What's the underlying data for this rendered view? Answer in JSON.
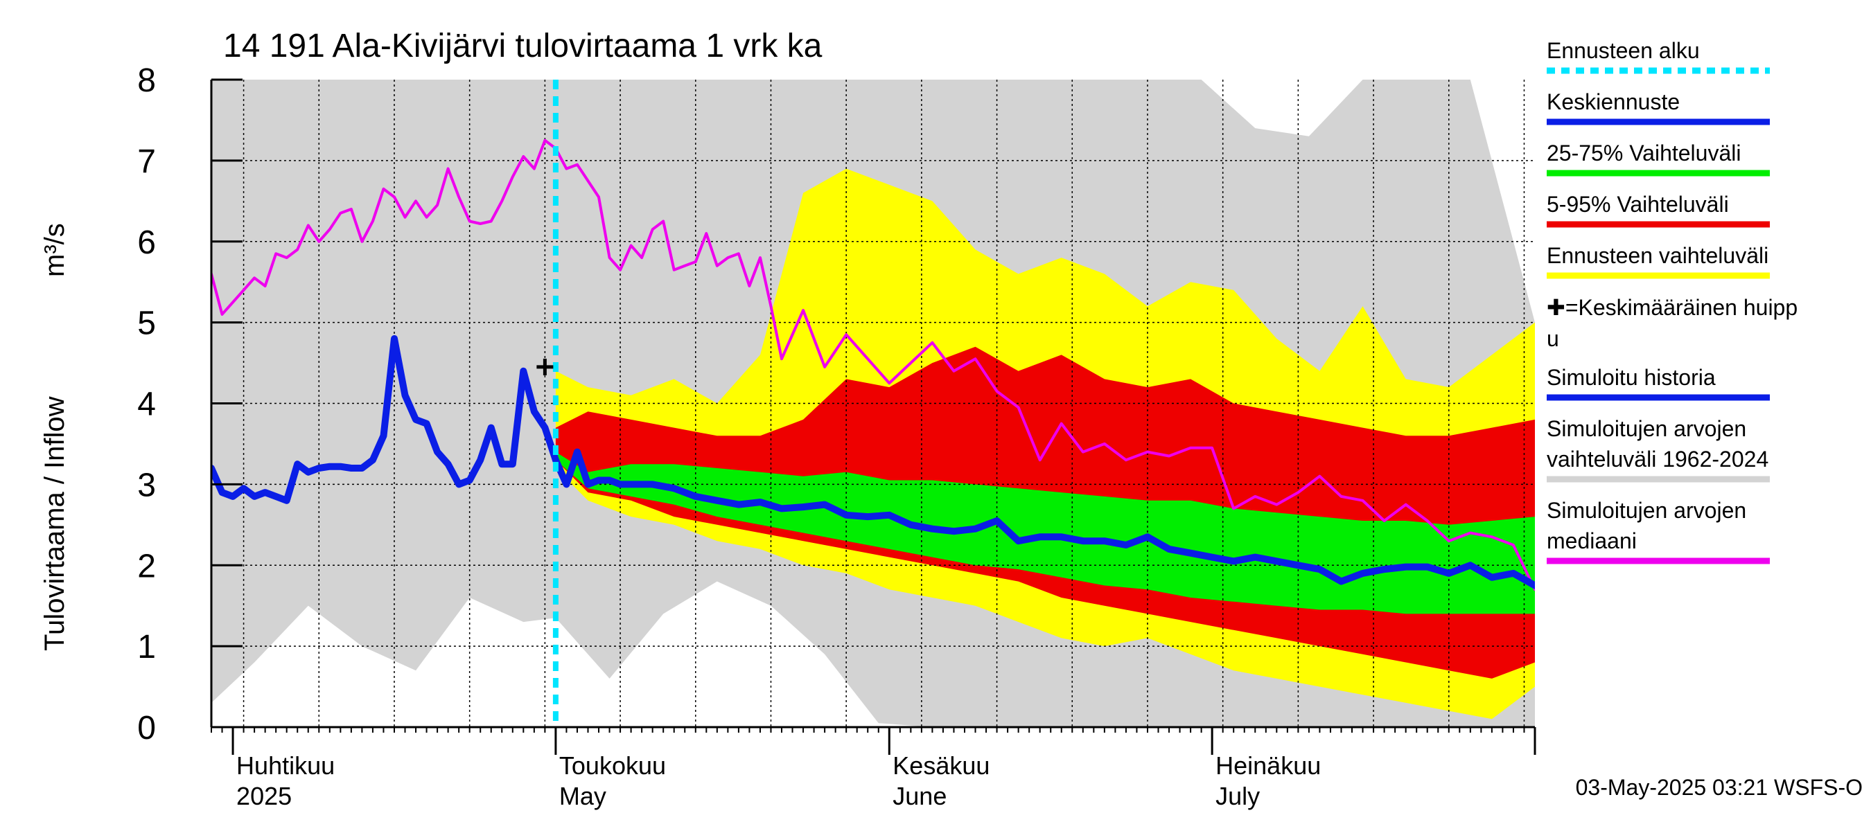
{
  "chart_data": {
    "type": "area",
    "title": "14 191 Ala-Kivijärvi tulovirtaama 1 vrk ka",
    "ylabel": "Tulovirtaama / Inflow",
    "yunit": "m³/s",
    "ylim": [
      0,
      8
    ],
    "yticks": [
      0,
      1,
      2,
      3,
      4,
      5,
      6,
      7,
      8
    ],
    "xlim": [
      "2025-03-30",
      "2025-07-31"
    ],
    "grid": true,
    "legend_position": "right",
    "month_labels": [
      {
        "date": "2025-04-01",
        "fi": "Huhtikuu",
        "en": "2025"
      },
      {
        "date": "2025-05-01",
        "fi": "Toukokuu",
        "en": "May"
      },
      {
        "date": "2025-06-01",
        "fi": "Kesäkuu",
        "en": "June"
      },
      {
        "date": "2025-07-01",
        "fi": "Heinäkuu",
        "en": "July"
      }
    ],
    "forecast_start": "2025-05-01",
    "mean_peak": {
      "date": "2025-04-30",
      "value": 4.45
    },
    "footer": "03-May-2025 03:21 WSFS-O",
    "legend": [
      {
        "label": "Ennusteen alku",
        "color": "#00e5ff",
        "style": "dashed"
      },
      {
        "label": "Keskiennuste",
        "color": "#0a1ee6",
        "style": "line"
      },
      {
        "label": "25-75% Vaihteluväli",
        "color": "#00ee00",
        "style": "line"
      },
      {
        "label": "5-95% Vaihteluväli",
        "color": "#ee0000",
        "style": "line"
      },
      {
        "label": "Ennusteen vaihteluväli",
        "color": "#ffff00",
        "style": "line"
      },
      {
        "label": "✚=Keskimääräinen huipp",
        "label2": "u",
        "color": "#000000",
        "style": "text"
      },
      {
        "label": "Simuloitu historia",
        "color": "#0a1ee6",
        "style": "line"
      },
      {
        "label": "Simuloitujen arvojen",
        "label2": "vaihteluväli 1962-2024",
        "color": "#d3d3d3",
        "style": "line"
      },
      {
        "label": "Simuloitujen arvojen",
        "label2": "mediaani",
        "color": "#ee00ee",
        "style": "line"
      }
    ],
    "colors": {
      "history_band": "#d3d3d3",
      "ensemble_band": "#ffff00",
      "p5_95_band": "#ee0000",
      "p25_75_band": "#00ee00",
      "median_line": "#ee00ee",
      "mean_forecast": "#0a1ee6",
      "forecast_start": "#00e5ff"
    },
    "series": [
      {
        "name": "Simuloitu historia",
        "x": [
          "2025-03-30",
          "2025-03-31",
          "2025-04-01",
          "2025-04-02",
          "2025-04-03",
          "2025-04-04",
          "2025-04-05",
          "2025-04-06",
          "2025-04-07",
          "2025-04-08",
          "2025-04-09",
          "2025-04-10",
          "2025-04-11",
          "2025-04-12",
          "2025-04-13",
          "2025-04-14",
          "2025-04-15",
          "2025-04-16",
          "2025-04-17",
          "2025-04-18",
          "2025-04-19",
          "2025-04-20",
          "2025-04-21",
          "2025-04-22",
          "2025-04-23",
          "2025-04-24",
          "2025-04-25",
          "2025-04-26",
          "2025-04-27",
          "2025-04-28",
          "2025-04-29",
          "2025-04-30",
          "2025-05-01"
        ],
        "values": [
          3.2,
          2.9,
          2.85,
          2.95,
          2.85,
          2.9,
          2.85,
          2.8,
          3.25,
          3.15,
          3.2,
          3.22,
          3.22,
          3.2,
          3.2,
          3.3,
          3.6,
          4.8,
          4.1,
          3.8,
          3.75,
          3.4,
          3.25,
          3.0,
          3.05,
          3.3,
          3.7,
          3.25,
          3.25,
          4.4,
          3.9,
          3.7,
          3.3
        ]
      },
      {
        "name": "Keskiennuste",
        "x": [
          "2025-05-01",
          "2025-05-02",
          "2025-05-03",
          "2025-05-04",
          "2025-05-05",
          "2025-05-06",
          "2025-05-07",
          "2025-05-08",
          "2025-05-10",
          "2025-05-12",
          "2025-05-14",
          "2025-05-16",
          "2025-05-18",
          "2025-05-20",
          "2025-05-22",
          "2025-05-24",
          "2025-05-26",
          "2025-05-28",
          "2025-05-30",
          "2025-06-01",
          "2025-06-03",
          "2025-06-05",
          "2025-06-07",
          "2025-06-09",
          "2025-06-11",
          "2025-06-13",
          "2025-06-15",
          "2025-06-17",
          "2025-06-19",
          "2025-06-21",
          "2025-06-23",
          "2025-06-25",
          "2025-06-27",
          "2025-06-29",
          "2025-07-01",
          "2025-07-03",
          "2025-07-05",
          "2025-07-07",
          "2025-07-09",
          "2025-07-11",
          "2025-07-13",
          "2025-07-15",
          "2025-07-17",
          "2025-07-19",
          "2025-07-21",
          "2025-07-23",
          "2025-07-25",
          "2025-07-27",
          "2025-07-29",
          "2025-07-31"
        ],
        "values": [
          3.3,
          3.0,
          3.4,
          3.0,
          3.05,
          3.05,
          3.0,
          3.0,
          3.0,
          2.95,
          2.85,
          2.8,
          2.75,
          2.78,
          2.7,
          2.72,
          2.75,
          2.62,
          2.6,
          2.62,
          2.5,
          2.45,
          2.42,
          2.45,
          2.55,
          2.3,
          2.35,
          2.35,
          2.3,
          2.3,
          2.25,
          2.35,
          2.2,
          2.15,
          2.1,
          2.05,
          2.1,
          2.05,
          2.0,
          1.95,
          1.8,
          1.9,
          1.95,
          1.98,
          1.98,
          1.9,
          2.0,
          1.85,
          1.9,
          1.75
        ]
      },
      {
        "name": "Simuloitujen arvojen mediaani",
        "x": [
          "2025-03-30",
          "2025-03-31",
          "2025-04-02",
          "2025-04-03",
          "2025-04-04",
          "2025-04-05",
          "2025-04-06",
          "2025-04-07",
          "2025-04-08",
          "2025-04-09",
          "2025-04-10",
          "2025-04-11",
          "2025-04-12",
          "2025-04-13",
          "2025-04-14",
          "2025-04-15",
          "2025-04-16",
          "2025-04-17",
          "2025-04-18",
          "2025-04-19",
          "2025-04-20",
          "2025-04-21",
          "2025-04-22",
          "2025-04-23",
          "2025-04-24",
          "2025-04-25",
          "2025-04-26",
          "2025-04-27",
          "2025-04-28",
          "2025-04-29",
          "2025-04-30",
          "2025-05-01",
          "2025-05-02",
          "2025-05-03",
          "2025-05-04",
          "2025-05-05",
          "2025-05-06",
          "2025-05-07",
          "2025-05-08",
          "2025-05-09",
          "2025-05-10",
          "2025-05-11",
          "2025-05-12",
          "2025-05-13",
          "2025-05-14",
          "2025-05-15",
          "2025-05-16",
          "2025-05-17",
          "2025-05-18",
          "2025-05-19",
          "2025-05-20",
          "2025-05-21",
          "2025-05-22",
          "2025-05-24",
          "2025-05-26",
          "2025-05-28",
          "2025-05-30",
          "2025-06-01",
          "2025-06-03",
          "2025-06-05",
          "2025-06-07",
          "2025-06-09",
          "2025-06-11",
          "2025-06-13",
          "2025-06-15",
          "2025-06-17",
          "2025-06-19",
          "2025-06-21",
          "2025-06-23",
          "2025-06-25",
          "2025-06-27",
          "2025-06-29",
          "2025-07-01",
          "2025-07-03",
          "2025-07-05",
          "2025-07-07",
          "2025-07-09",
          "2025-07-11",
          "2025-07-13",
          "2025-07-15",
          "2025-07-17",
          "2025-07-19",
          "2025-07-21",
          "2025-07-23",
          "2025-07-25",
          "2025-07-27",
          "2025-07-29",
          "2025-07-31"
        ],
        "values": [
          5.6,
          5.1,
          5.4,
          5.55,
          5.45,
          5.85,
          5.8,
          5.9,
          6.2,
          6.0,
          6.15,
          6.35,
          6.4,
          6.0,
          6.25,
          6.65,
          6.55,
          6.3,
          6.5,
          6.3,
          6.45,
          6.9,
          6.55,
          6.25,
          6.22,
          6.25,
          6.5,
          6.8,
          7.05,
          6.9,
          7.25,
          7.15,
          6.9,
          6.95,
          6.75,
          6.55,
          5.8,
          5.65,
          5.95,
          5.8,
          6.15,
          6.25,
          5.65,
          5.7,
          5.75,
          6.1,
          5.7,
          5.8,
          5.85,
          5.45,
          5.8,
          5.2,
          4.55,
          5.15,
          4.45,
          4.85,
          4.55,
          4.25,
          4.5,
          4.75,
          4.4,
          4.55,
          4.15,
          3.95,
          3.3,
          3.75,
          3.4,
          3.5,
          3.3,
          3.4,
          3.35,
          3.45,
          3.45,
          2.7,
          2.85,
          2.75,
          2.9,
          3.1,
          2.85,
          2.8,
          2.55,
          2.75,
          2.55,
          2.3,
          2.4,
          2.35,
          2.25,
          1.7
        ]
      },
      {
        "name": "Simuloitujen arvojen vaihteluväli 1962-2024",
        "x": [
          "2025-03-30",
          "2025-04-03",
          "2025-04-08",
          "2025-04-13",
          "2025-04-18",
          "2025-04-23",
          "2025-04-28",
          "2025-05-01",
          "2025-05-06",
          "2025-05-11",
          "2025-05-16",
          "2025-05-21",
          "2025-05-26",
          "2025-05-31",
          "2025-06-05",
          "2025-06-10",
          "2025-06-15",
          "2025-06-20",
          "2025-06-25",
          "2025-06-30",
          "2025-07-05",
          "2025-07-10",
          "2025-07-15",
          "2025-07-20",
          "2025-07-25",
          "2025-07-31"
        ],
        "low": [
          0.3,
          0.8,
          1.5,
          1.0,
          0.7,
          1.6,
          1.3,
          1.35,
          0.6,
          1.4,
          1.8,
          1.5,
          0.9,
          0.05,
          0.0,
          0.0,
          0.0,
          0.0,
          0.0,
          0.0,
          0.0,
          0.0,
          0.0,
          0.0,
          0.0,
          0.0
        ],
        "high": [
          8,
          8,
          8,
          8,
          8,
          8,
          8,
          8,
          8,
          8,
          8,
          8,
          8,
          8,
          8,
          8,
          8,
          8,
          8,
          8,
          7.4,
          7.3,
          8,
          8,
          8,
          5.0
        ]
      },
      {
        "name": "Ennusteen vaihteluväli",
        "x": [
          "2025-05-01",
          "2025-05-04",
          "2025-05-08",
          "2025-05-12",
          "2025-05-16",
          "2025-05-20",
          "2025-05-24",
          "2025-05-28",
          "2025-06-01",
          "2025-06-05",
          "2025-06-09",
          "2025-06-13",
          "2025-06-17",
          "2025-06-21",
          "2025-06-25",
          "2025-06-29",
          "2025-07-03",
          "2025-07-07",
          "2025-07-11",
          "2025-07-15",
          "2025-07-19",
          "2025-07-23",
          "2025-07-27",
          "2025-07-31"
        ],
        "low": [
          3.2,
          2.8,
          2.6,
          2.5,
          2.3,
          2.2,
          2.0,
          1.9,
          1.7,
          1.6,
          1.5,
          1.3,
          1.1,
          1.0,
          1.1,
          0.9,
          0.7,
          0.6,
          0.5,
          0.4,
          0.3,
          0.2,
          0.1,
          0.5
        ],
        "high": [
          4.4,
          4.2,
          4.1,
          4.3,
          4.0,
          4.6,
          6.6,
          6.9,
          6.7,
          6.5,
          5.9,
          5.6,
          5.8,
          5.6,
          5.2,
          5.5,
          5.4,
          4.8,
          4.4,
          5.2,
          4.3,
          4.2,
          4.6,
          5.0
        ]
      },
      {
        "name": "5-95% Vaihteluväli",
        "x": [
          "2025-05-01",
          "2025-05-04",
          "2025-05-08",
          "2025-05-12",
          "2025-05-16",
          "2025-05-20",
          "2025-05-24",
          "2025-05-28",
          "2025-06-01",
          "2025-06-05",
          "2025-06-09",
          "2025-06-13",
          "2025-06-17",
          "2025-06-21",
          "2025-06-25",
          "2025-06-29",
          "2025-07-03",
          "2025-07-07",
          "2025-07-11",
          "2025-07-15",
          "2025-07-19",
          "2025-07-23",
          "2025-07-27",
          "2025-07-31"
        ],
        "low": [
          3.3,
          2.9,
          2.8,
          2.6,
          2.5,
          2.4,
          2.3,
          2.2,
          2.1,
          2.0,
          1.9,
          1.8,
          1.6,
          1.5,
          1.4,
          1.3,
          1.2,
          1.1,
          1.0,
          0.9,
          0.8,
          0.7,
          0.6,
          0.8
        ],
        "high": [
          3.7,
          3.9,
          3.8,
          3.7,
          3.6,
          3.6,
          3.8,
          4.3,
          4.2,
          4.5,
          4.7,
          4.4,
          4.6,
          4.3,
          4.2,
          4.3,
          4.0,
          3.9,
          3.8,
          3.7,
          3.6,
          3.6,
          3.7,
          3.8
        ]
      },
      {
        "name": "25-75% Vaihteluväli",
        "x": [
          "2025-05-01",
          "2025-05-04",
          "2025-05-08",
          "2025-05-12",
          "2025-05-16",
          "2025-05-20",
          "2025-05-24",
          "2025-05-28",
          "2025-06-01",
          "2025-06-05",
          "2025-06-09",
          "2025-06-13",
          "2025-06-17",
          "2025-06-21",
          "2025-06-25",
          "2025-06-29",
          "2025-07-03",
          "2025-07-07",
          "2025-07-11",
          "2025-07-15",
          "2025-07-19",
          "2025-07-23",
          "2025-07-27",
          "2025-07-31"
        ],
        "low": [
          3.3,
          2.95,
          2.85,
          2.75,
          2.6,
          2.5,
          2.4,
          2.3,
          2.2,
          2.1,
          2.0,
          1.95,
          1.85,
          1.75,
          1.7,
          1.6,
          1.55,
          1.5,
          1.45,
          1.45,
          1.4,
          1.4,
          1.4,
          1.4
        ],
        "high": [
          3.4,
          3.15,
          3.25,
          3.25,
          3.2,
          3.15,
          3.1,
          3.15,
          3.05,
          3.05,
          3.0,
          2.95,
          2.9,
          2.85,
          2.8,
          2.8,
          2.7,
          2.65,
          2.6,
          2.55,
          2.55,
          2.5,
          2.55,
          2.6
        ]
      }
    ]
  }
}
